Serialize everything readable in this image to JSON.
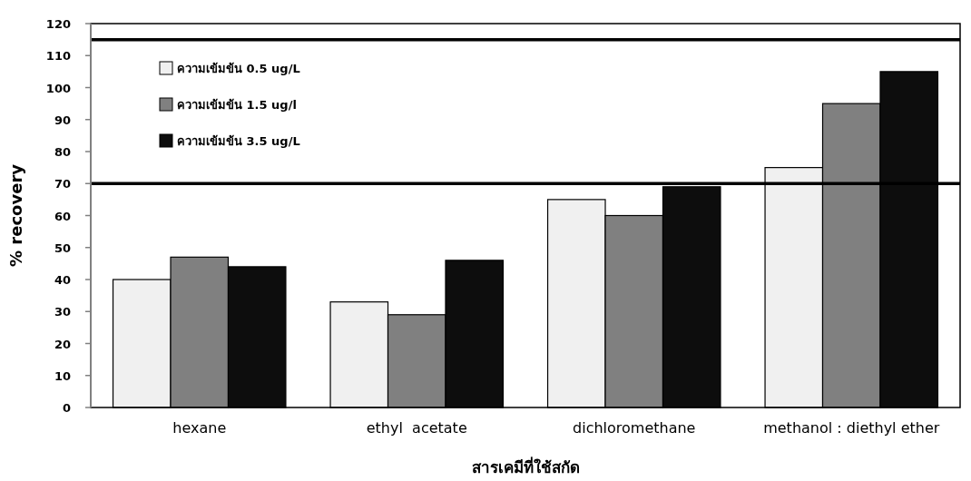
{
  "chart_data": {
    "type": "bar",
    "xlabel": "สารเคมีที่ใช้สกัด",
    "ylabel": "% recovery",
    "categories": [
      "hexane",
      "ethyl  acetate",
      "dichloromethane",
      "methanol : diethyl ether"
    ],
    "series": [
      {
        "name": "ความเข้มข้น 0.5 ug/L",
        "color": "#f0f0f0",
        "values": [
          40,
          33,
          65,
          75
        ]
      },
      {
        "name": "ความเข้มข้น 1.5 ug/l",
        "color": "#808080",
        "values": [
          47,
          29,
          60,
          95
        ]
      },
      {
        "name": "ความเข้มข้น 3.5 ug/L",
        "color": "#0d0d0d",
        "values": [
          44,
          46,
          69,
          105
        ]
      }
    ],
    "ylim": [
      0,
      120
    ],
    "yticks": [
      0,
      10,
      20,
      30,
      40,
      50,
      60,
      70,
      80,
      90,
      100,
      110,
      120
    ],
    "ref_lines": [
      {
        "axis": "y",
        "value": 70,
        "color": "#000000"
      },
      {
        "axis": "y",
        "value": 115,
        "color": "#000000"
      }
    ],
    "legend": "top left",
    "grid": false
  }
}
